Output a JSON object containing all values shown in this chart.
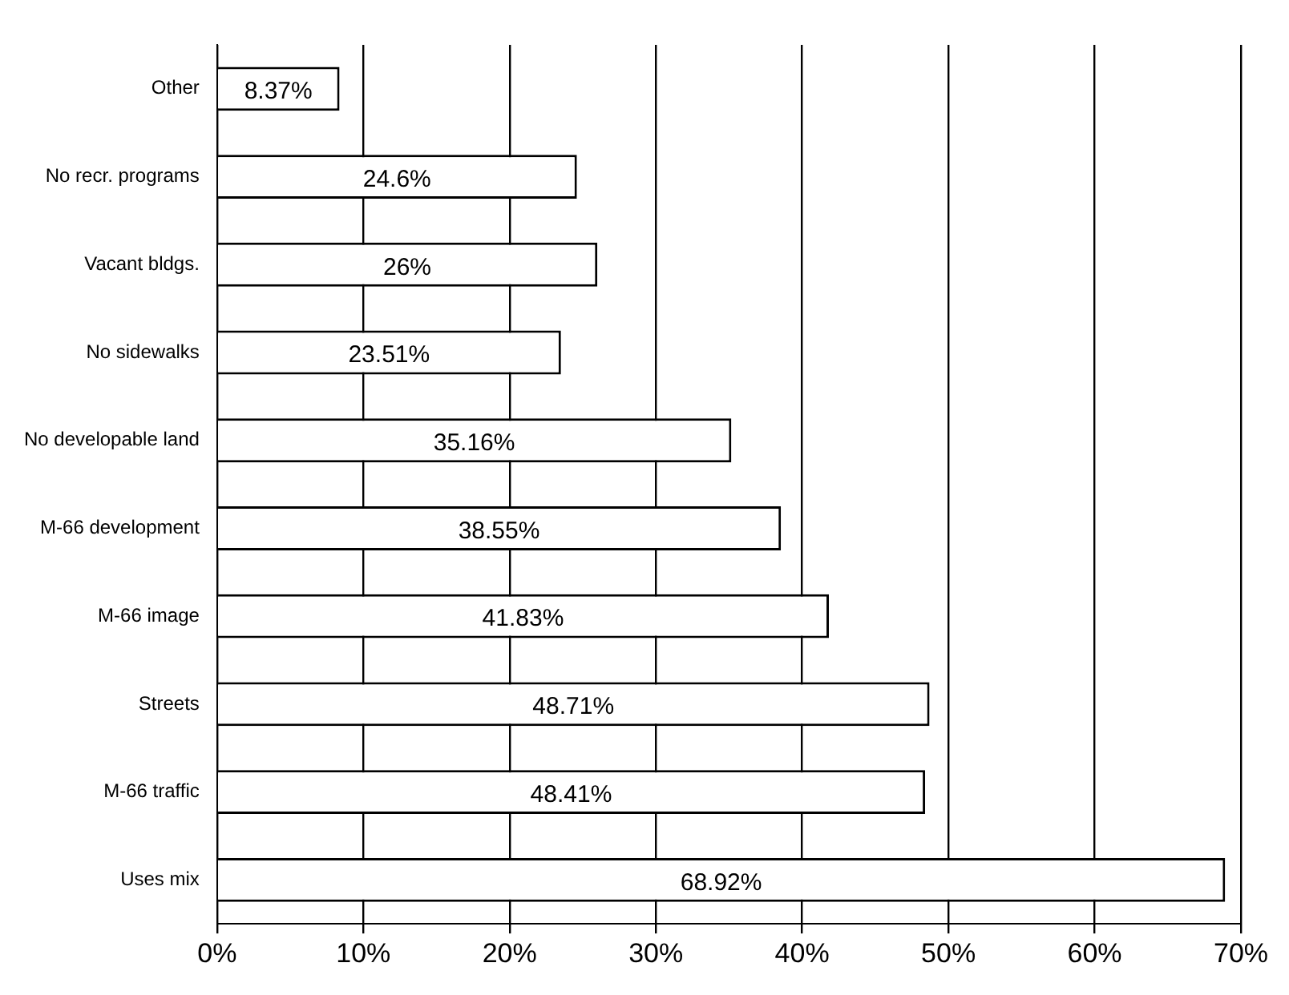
{
  "chart_data": {
    "type": "bar",
    "orientation": "horizontal",
    "categories": [
      "Other",
      "No recr. programs",
      "Vacant bldgs.",
      "No sidewalks",
      "No developable land",
      "M-66 development",
      "M-66 image",
      "Streets",
      "M-66 traffic",
      "Uses mix"
    ],
    "values": [
      8.37,
      24.6,
      26,
      23.51,
      35.16,
      38.55,
      41.83,
      48.71,
      48.41,
      68.92
    ],
    "color": "#ffffff",
    "value_labels": [
      "8.37%",
      "24.6%",
      "26%",
      "23.51%",
      "35.16%",
      "38.55%",
      "41.83%",
      "48.71%",
      "48.41%",
      "68.92%"
    ],
    "xlim": [
      0,
      70
    ],
    "xticks": [
      {
        "value": 0,
        "label": "0%"
      },
      {
        "value": 10,
        "label": "10%"
      },
      {
        "value": 20,
        "label": "20%"
      },
      {
        "value": 30,
        "label": "30%"
      },
      {
        "value": 40,
        "label": "40%"
      },
      {
        "value": 50,
        "label": "50%"
      },
      {
        "value": 60,
        "label": "60%"
      },
      {
        "value": 70,
        "label": "70%"
      }
    ],
    "grid": "x",
    "legend": false
  }
}
